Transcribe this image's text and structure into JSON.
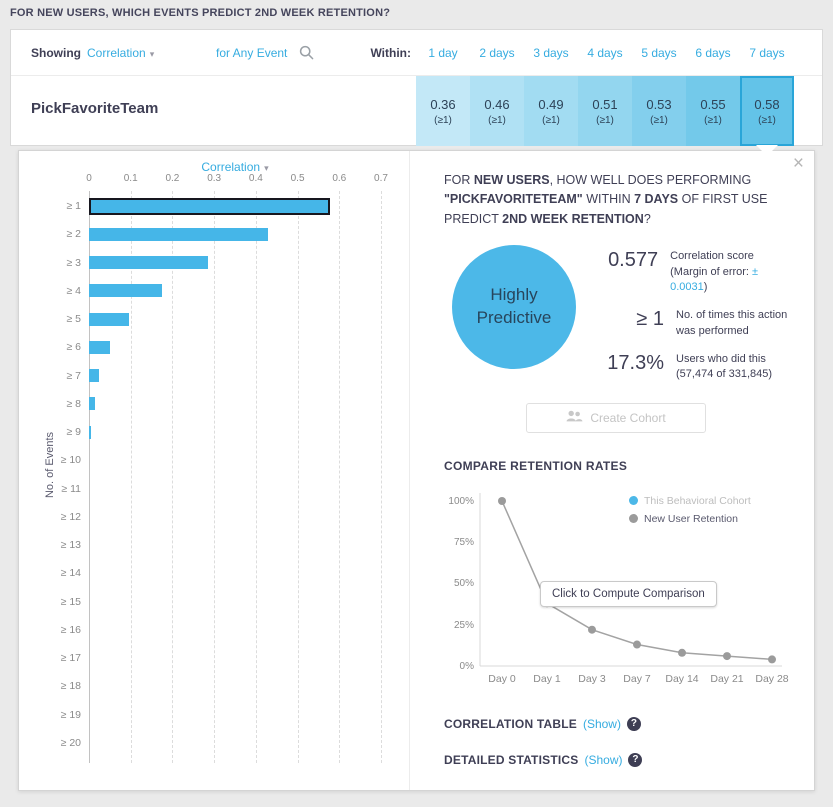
{
  "page": {
    "title": "FOR NEW USERS, WHICH EVENTS PREDICT 2ND WEEK RETENTION?"
  },
  "icons": {
    "caret_down": "▾",
    "close": "×",
    "help": "?"
  },
  "toolbar": {
    "showing_label": "Showing",
    "metric": "Correlation",
    "event_filter": "for Any Event",
    "within_label": "Within:",
    "day_columns": [
      "1 day",
      "2 days",
      "3 days",
      "4 days",
      "5 days",
      "6 days",
      "7 days"
    ]
  },
  "event_row": {
    "name": "PickFavoriteTeam",
    "cells": [
      {
        "value": "0.36",
        "sub": "(≥1)",
        "bg": "#c3e8f7",
        "selected": false
      },
      {
        "value": "0.46",
        "sub": "(≥1)",
        "bg": "#b0e1f4",
        "selected": false
      },
      {
        "value": "0.49",
        "sub": "(≥1)",
        "bg": "#a2dcf2",
        "selected": false
      },
      {
        "value": "0.51",
        "sub": "(≥1)",
        "bg": "#93d6ef",
        "selected": false
      },
      {
        "value": "0.53",
        "sub": "(≥1)",
        "bg": "#83cfed",
        "selected": false
      },
      {
        "value": "0.55",
        "sub": "(≥1)",
        "bg": "#73c9ea",
        "selected": false
      },
      {
        "value": "0.58",
        "sub": "(≥1)",
        "bg": "#63c3e8",
        "selected": true
      }
    ]
  },
  "chart_data": [
    {
      "type": "bar",
      "orientation": "horizontal",
      "title": "Correlation",
      "ylabel": "No. of Events",
      "xlabel": "Correlation",
      "categories": [
        "≥ 1",
        "≥ 2",
        "≥ 3",
        "≥ 4",
        "≥ 5",
        "≥ 6",
        "≥ 7",
        "≥ 8",
        "≥ 9",
        "≥ 10",
        "≥ 11",
        "≥ 12",
        "≥ 13",
        "≥ 14",
        "≥ 15",
        "≥ 16",
        "≥ 17",
        "≥ 18",
        "≥ 19",
        "≥ 20"
      ],
      "values": [
        0.577,
        0.43,
        0.285,
        0.175,
        0.095,
        0.05,
        0.025,
        0.014,
        0.005,
        0,
        0,
        0,
        0,
        0,
        0,
        0,
        0,
        0,
        0,
        0
      ],
      "xlim": [
        0,
        0.7
      ],
      "xticks": [
        "0",
        "0.1",
        "0.2",
        "0.3",
        "0.4",
        "0.5",
        "0.6",
        "0.7"
      ],
      "highlight_index": 0,
      "bar_color": "#45b6e8",
      "highlight_border": "#17171f",
      "grid": "dashed-vertical"
    },
    {
      "type": "line",
      "categories": [
        "Day 0",
        "Day 1",
        "Day 3",
        "Day 7",
        "Day 14",
        "Day 21",
        "Day 28"
      ],
      "series": [
        {
          "name": "New User Retention",
          "color": "#9b9b9b",
          "values": [
            100,
            38,
            22,
            13,
            8,
            6,
            4
          ]
        },
        {
          "name": "This Behavioral Cohort",
          "color": "#4cb8e8",
          "values": []
        }
      ],
      "ylim": [
        0,
        100
      ],
      "yticks": [
        "0%",
        "25%",
        "50%",
        "75%",
        "100%"
      ],
      "legend": [
        {
          "label": "This Behavioral Cohort",
          "color": "#4cb8e8",
          "muted": true
        },
        {
          "label": "New User Retention",
          "color": "#9b9b9b",
          "muted": false
        }
      ],
      "legend_position": "top-right"
    }
  ],
  "popup": {
    "close_label": "×",
    "question_segments": [
      {
        "text": "FOR ",
        "bold": false
      },
      {
        "text": "NEW USERS",
        "bold": true
      },
      {
        "text": ", HOW WELL DOES PERFORMING ",
        "bold": false
      },
      {
        "text": "\"PICKFAVORITETEAM\"",
        "bold": true
      },
      {
        "text": " WITHIN ",
        "bold": false
      },
      {
        "text": "7 DAYS",
        "bold": true
      },
      {
        "text": " OF FIRST USE PREDICT ",
        "bold": false
      },
      {
        "text": "2ND WEEK RETENTION",
        "bold": true
      },
      {
        "text": "?",
        "bold": false
      }
    ],
    "badge": {
      "lines": [
        "Highly",
        "Predictive"
      ],
      "color": "#4cb8e8"
    },
    "stats": [
      {
        "value": "0.577",
        "line1": "Correlation score",
        "line2_prefix": "(Margin of error: ",
        "line2_accent": "± 0.0031",
        "line2_suffix": ")"
      },
      {
        "value": "≥ 1",
        "line1": "No. of times this action",
        "line2": "was performed"
      },
      {
        "value": "17.3%",
        "line1": "Users who did this",
        "line2": "(57,474 of 331,845)"
      }
    ],
    "create_cohort_label": "Create Cohort",
    "compare_heading": "COMPARE RETENTION RATES",
    "compute_button": "Click to Compute Comparison",
    "links": [
      {
        "label": "CORRELATION TABLE",
        "action_display": "(Show)"
      },
      {
        "label": "DETAILED STATISTICS",
        "action_display": "(Show)"
      }
    ]
  }
}
